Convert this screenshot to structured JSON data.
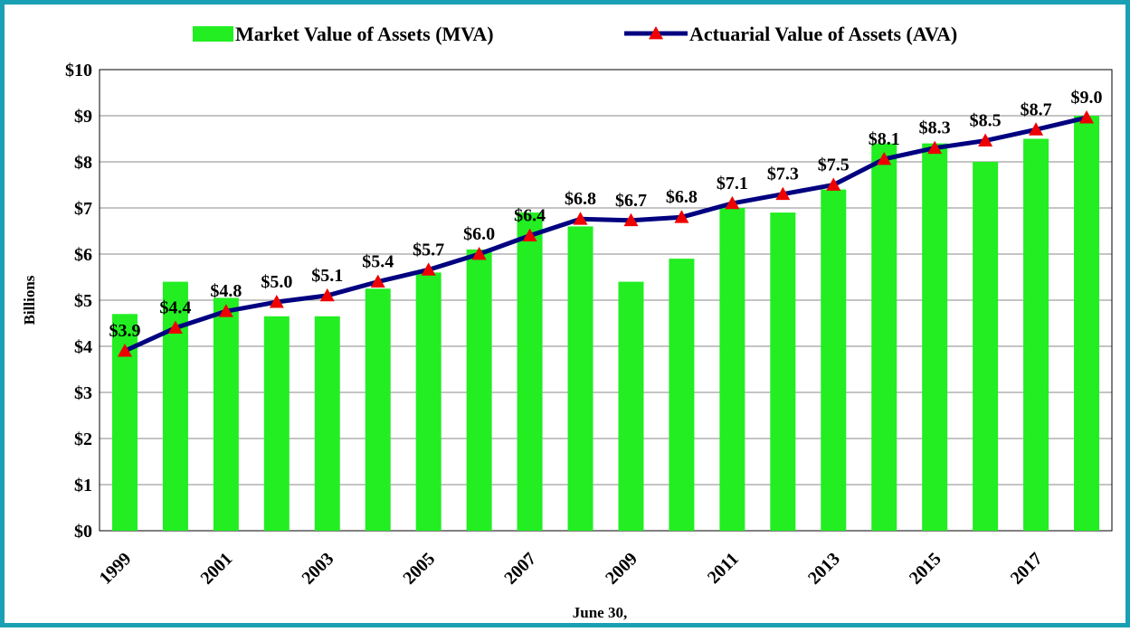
{
  "chart_data": {
    "type": "bar-line",
    "y_label": "Billions",
    "x_label": "June 30,",
    "categories": [
      "1999",
      null,
      "2001",
      null,
      "2003",
      null,
      "2005",
      null,
      "2007",
      null,
      "2009",
      null,
      "2011",
      null,
      "2013",
      null,
      "2015",
      null,
      "2017",
      null
    ],
    "series": [
      {
        "name": "Market Value of Assets (MVA)",
        "type": "bar",
        "color": "#22ee22",
        "values": [
          4.7,
          5.4,
          5.05,
          4.65,
          4.65,
          5.25,
          5.6,
          6.1,
          6.9,
          6.6,
          5.4,
          5.9,
          7.0,
          6.9,
          7.4,
          8.4,
          8.4,
          8.0,
          8.5,
          9.0
        ]
      },
      {
        "name": "Actuarial Value of Assets (AVA)",
        "type": "line",
        "color": "#000080",
        "marker_color": "#ee0000",
        "values": [
          3.9,
          4.4,
          4.76,
          4.96,
          5.1,
          5.4,
          5.66,
          6.0,
          6.4,
          6.76,
          6.73,
          6.8,
          7.1,
          7.3,
          7.5,
          8.06,
          8.3,
          8.46,
          8.7,
          8.96
        ],
        "value_labels": [
          "$3.9",
          "$4.4",
          "$4.8",
          "$5.0",
          "$5.1",
          "$5.4",
          "$5.7",
          "$6.0",
          "$6.4",
          "$6.8",
          "$6.7",
          "$6.8",
          "$7.1",
          "$7.3",
          "$7.5",
          "$8.1",
          "$8.3",
          "$8.5",
          "$8.7",
          "$9.0"
        ]
      }
    ],
    "ylim": [
      0,
      10
    ],
    "yticks": [
      {
        "value": 0,
        "label": "$0"
      },
      {
        "value": 1,
        "label": "$1"
      },
      {
        "value": 2,
        "label": "$2"
      },
      {
        "value": 3,
        "label": "$3"
      },
      {
        "value": 4,
        "label": "$4"
      },
      {
        "value": 5,
        "label": "$5"
      },
      {
        "value": 6,
        "label": "$6"
      },
      {
        "value": 7,
        "label": "$7"
      },
      {
        "value": 8,
        "label": "$8"
      },
      {
        "value": 9,
        "label": "$9"
      },
      {
        "value": 10,
        "label": "$10"
      }
    ],
    "grid": true,
    "legend": "top"
  }
}
